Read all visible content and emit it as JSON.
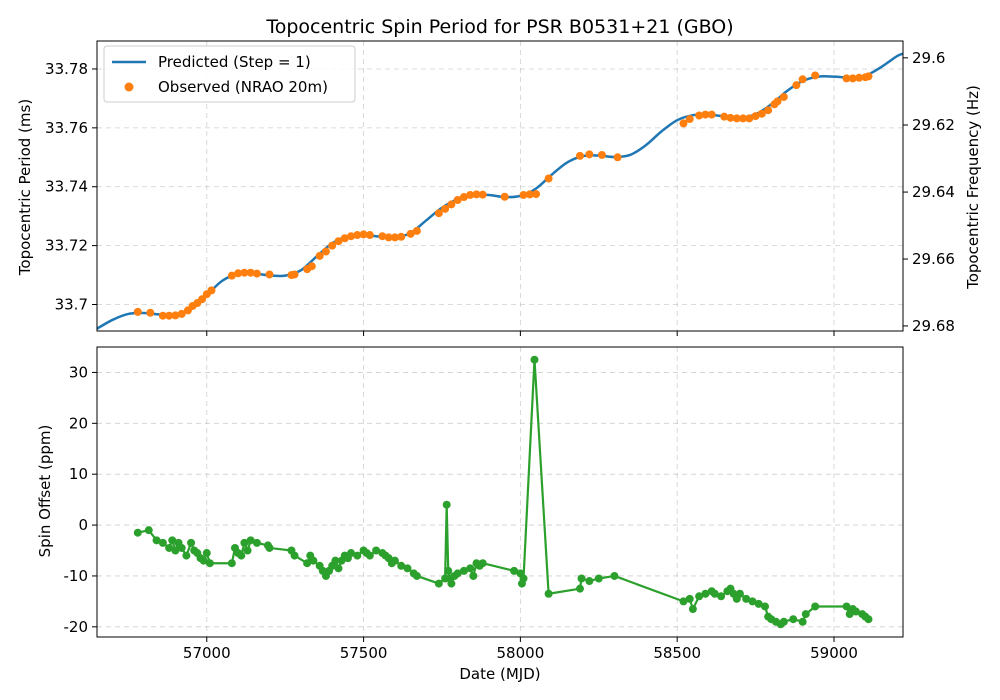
{
  "chart_data": [
    {
      "type": "line",
      "title": "Topocentric Spin Period for PSR B0531+21 (GBO)",
      "xlabel": "",
      "ylabel": "Topocentric Period (ms)",
      "ylabel_right": "Topocentric Frequency (Hz)",
      "xlim": [
        56650,
        59220
      ],
      "ylim": [
        33.691,
        33.7895
      ],
      "grid": true,
      "legend_position": "upper-left",
      "x_ticks": [
        57000,
        57500,
        58000,
        58500,
        59000
      ],
      "y_ticks": [
        33.7,
        33.72,
        33.74,
        33.76,
        33.78
      ],
      "y_tick_labels": [
        "33.7",
        "33.72",
        "33.74",
        "33.76",
        "33.78"
      ],
      "y_right_ticks": [
        29.6,
        29.62,
        29.64,
        29.66,
        29.68
      ],
      "y_right_tick_labels": [
        "29.6",
        "29.62",
        "29.64",
        "29.66",
        "29.68"
      ],
      "series": [
        {
          "name": "Predicted (Step = 1)",
          "style": "line",
          "color": "#1f77b4",
          "x": [
            56650,
            56700,
            56750,
            56800,
            56850,
            56900,
            56950,
            57000,
            57050,
            57100,
            57150,
            57200,
            57250,
            57300,
            57350,
            57400,
            57450,
            57500,
            57550,
            57600,
            57650,
            57700,
            57750,
            57800,
            57850,
            57900,
            57950,
            58000,
            58050,
            58100,
            58150,
            58200,
            58250,
            58300,
            58350,
            58400,
            58450,
            58500,
            58550,
            58600,
            58650,
            58700,
            58750,
            58800,
            58850,
            58900,
            58950,
            59000,
            59050,
            59100,
            59150,
            59200,
            59220
          ],
          "y": [
            33.6918,
            33.6948,
            33.6968,
            33.6971,
            33.6966,
            33.6967,
            33.6985,
            33.7032,
            33.7081,
            33.7104,
            33.7105,
            33.7099,
            33.7098,
            33.7116,
            33.7163,
            33.7208,
            33.7231,
            33.7235,
            33.7231,
            33.7228,
            33.7243,
            33.7286,
            33.7329,
            33.7358,
            33.7372,
            33.7372,
            33.7365,
            33.7369,
            33.7394,
            33.7441,
            33.7483,
            33.7504,
            33.7506,
            33.7501,
            33.7508,
            33.7541,
            33.7588,
            33.7626,
            33.7643,
            33.7645,
            33.7639,
            33.7635,
            33.7646,
            33.768,
            33.7725,
            33.7759,
            33.7774,
            33.7774,
            33.7771,
            33.7777,
            33.7806,
            33.7843,
            33.7852
          ]
        },
        {
          "name": "Observed (NRAO 20m)",
          "style": "markers",
          "color": "#ff7f0e",
          "x": [
            56780,
            56820,
            56860,
            56880,
            56900,
            56920,
            56940,
            56955,
            56970,
            56985,
            57000,
            57015,
            57080,
            57100,
            57120,
            57140,
            57160,
            57200,
            57270,
            57280,
            57320,
            57335,
            57360,
            57380,
            57400,
            57420,
            57440,
            57460,
            57480,
            57500,
            57520,
            57560,
            57580,
            57600,
            57620,
            57650,
            57670,
            57740,
            57760,
            57780,
            57800,
            57820,
            57840,
            57860,
            57880,
            57950,
            58010,
            58030,
            58050,
            58090,
            58190,
            58220,
            58260,
            58310,
            58520,
            58540,
            58570,
            58590,
            58610,
            58650,
            58670,
            58690,
            58710,
            58730,
            58750,
            58770,
            58790,
            58810,
            58820,
            58840,
            58880,
            58900,
            58940,
            59040,
            59060,
            59080,
            59100,
            59110
          ],
          "y": [
            33.6975,
            33.6972,
            33.6962,
            33.6962,
            33.6963,
            33.6968,
            33.698,
            33.6995,
            33.7005,
            33.7018,
            33.7035,
            33.7048,
            33.7098,
            33.7106,
            33.7108,
            33.7108,
            33.7105,
            33.7102,
            33.71,
            33.7102,
            33.712,
            33.713,
            33.7165,
            33.718,
            33.72,
            33.7215,
            33.7225,
            33.7232,
            33.7236,
            33.7238,
            33.7236,
            33.7232,
            33.7228,
            33.7228,
            33.723,
            33.724,
            33.725,
            33.731,
            33.7325,
            33.734,
            33.7355,
            33.7365,
            33.7372,
            33.7374,
            33.7373,
            33.7366,
            33.7372,
            33.7374,
            33.7375,
            33.7428,
            33.7505,
            33.751,
            33.7508,
            33.75,
            33.7615,
            33.763,
            33.7642,
            33.7645,
            33.7645,
            33.7638,
            33.7634,
            33.7632,
            33.7632,
            33.7632,
            33.764,
            33.7648,
            33.766,
            33.768,
            33.769,
            33.7705,
            33.7745,
            33.7765,
            33.7778,
            33.7768,
            33.7768,
            33.777,
            33.7772,
            33.7775
          ]
        }
      ]
    },
    {
      "type": "line",
      "title": "",
      "xlabel": "Date (MJD)",
      "ylabel": "Spin Offset (ppm)",
      "xlim": [
        56650,
        59220
      ],
      "ylim": [
        -22,
        35
      ],
      "grid": true,
      "x_ticks": [
        57000,
        57500,
        58000,
        58500,
        59000
      ],
      "x_tick_labels": [
        "57000",
        "57500",
        "58000",
        "58500",
        "59000"
      ],
      "y_ticks": [
        -20,
        -10,
        0,
        10,
        20,
        30
      ],
      "y_tick_labels": [
        "-20",
        "-10",
        "0",
        "10",
        "20",
        "30"
      ],
      "series": [
        {
          "name": "",
          "style": "line+markers",
          "color": "#2ca02c",
          "x": [
            56780,
            56815,
            56840,
            56860,
            56880,
            56890,
            56900,
            56910,
            56920,
            56935,
            56950,
            56960,
            56970,
            56980,
            56990,
            57000,
            57010,
            57080,
            57090,
            57100,
            57110,
            57120,
            57130,
            57140,
            57160,
            57195,
            57200,
            57270,
            57280,
            57320,
            57330,
            57340,
            57360,
            57370,
            57380,
            57390,
            57400,
            57410,
            57420,
            57430,
            57440,
            57450,
            57460,
            57480,
            57500,
            57510,
            57520,
            57540,
            57560,
            57570,
            57580,
            57590,
            57600,
            57620,
            57640,
            57660,
            57670,
            57740,
            57760,
            57765,
            57770,
            57775,
            57780,
            57790,
            57800,
            57820,
            57840,
            57850,
            57860,
            57870,
            57880,
            57980,
            58000,
            58005,
            58010,
            58045,
            58090,
            58190,
            58195,
            58220,
            58250,
            58300,
            58520,
            58540,
            58550,
            58570,
            58590,
            58610,
            58620,
            58640,
            58660,
            58670,
            58680,
            58690,
            58700,
            58720,
            58740,
            58760,
            58780,
            58790,
            58800,
            58815,
            58830,
            58840,
            58870,
            58900,
            58910,
            58940,
            59040,
            59050,
            59060,
            59070,
            59090,
            59100,
            59110
          ],
          "y": [
            -1.5,
            -1,
            -3,
            -3.5,
            -4.5,
            -3,
            -5,
            -3.5,
            -4.5,
            -6,
            -3.5,
            -5,
            -5.5,
            -6.5,
            -7,
            -5.5,
            -7.5,
            -7.5,
            -4.5,
            -5.5,
            -6,
            -3.5,
            -5,
            -3,
            -3.5,
            -4,
            -4.5,
            -5,
            -6,
            -7.5,
            -6,
            -7,
            -8,
            -9,
            -10,
            -9,
            -8,
            -7,
            -8.5,
            -7,
            -6,
            -6.5,
            -5.5,
            -6,
            -5,
            -5.5,
            -6,
            -5,
            -5.5,
            -6,
            -6.5,
            -7.5,
            -7,
            -8,
            -8.5,
            -9.5,
            -10,
            -11.5,
            -10.5,
            4,
            -9,
            -10.5,
            -11.5,
            -10,
            -9.5,
            -9,
            -8.5,
            -10,
            -7.5,
            -8,
            -7.5,
            -9,
            -9.5,
            -11.5,
            -10.5,
            32.5,
            -13.5,
            -12.5,
            -10.5,
            -11,
            -10.5,
            -10,
            -15,
            -14.5,
            -16.5,
            -14,
            -13.5,
            -13,
            -13.5,
            -14,
            -13,
            -12.5,
            -13.5,
            -14.5,
            -13.5,
            -14.5,
            -15,
            -15.5,
            -16,
            -18,
            -18.5,
            -19,
            -19.5,
            -19,
            -18.5,
            -19,
            -17.5,
            -16,
            -16,
            -17.5,
            -16.5,
            -17,
            -17.5,
            -18,
            -18.5
          ]
        }
      ]
    }
  ]
}
